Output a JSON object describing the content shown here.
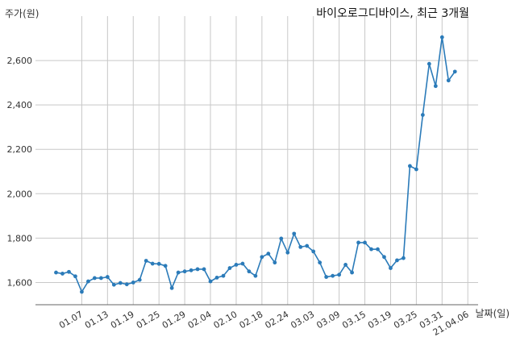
{
  "chart_data": {
    "type": "line",
    "title": "바이오로그디바이스, 최근 3개월",
    "ylabel": "주가(원)",
    "xlabel": "날짜(일)",
    "ylim": [
      1500,
      2800
    ],
    "y_ticks": [
      1600,
      1800,
      2000,
      2200,
      2400,
      2600
    ],
    "y_tick_labels": [
      "1,600",
      "1,800",
      "2,000",
      "2,200",
      "2,400",
      "2,600"
    ],
    "x_tick_labels": [
      "01.07",
      "01.13",
      "01.19",
      "01.25",
      "01.29",
      "02.04",
      "02.10",
      "02.18",
      "02.24",
      "03.03",
      "03.09",
      "03.15",
      "03.19",
      "03.25",
      "03.31",
      "21.04.06"
    ],
    "x_tick_index": [
      4,
      8,
      12,
      16,
      20,
      24,
      28,
      32,
      36,
      40,
      44,
      48,
      52,
      56,
      60,
      64
    ],
    "grid": "vertical and horizontal",
    "color": "#2b7bb9",
    "values": [
      1645,
      1640,
      1648,
      1628,
      1558,
      1605,
      1620,
      1620,
      1625,
      1590,
      1598,
      1592,
      1600,
      1612,
      1698,
      1685,
      1684,
      1675,
      1575,
      1645,
      1650,
      1655,
      1660,
      1660,
      1605,
      1622,
      1630,
      1665,
      1680,
      1685,
      1650,
      1630,
      1715,
      1730,
      1690,
      1798,
      1735,
      1820,
      1760,
      1765,
      1740,
      1690,
      1625,
      1630,
      1635,
      1680,
      1645,
      1780,
      1780,
      1750,
      1750,
      1715,
      1665,
      1700,
      1710,
      2125,
      2110,
      2355,
      2585,
      2485,
      2705,
      2510,
      2550
    ]
  }
}
